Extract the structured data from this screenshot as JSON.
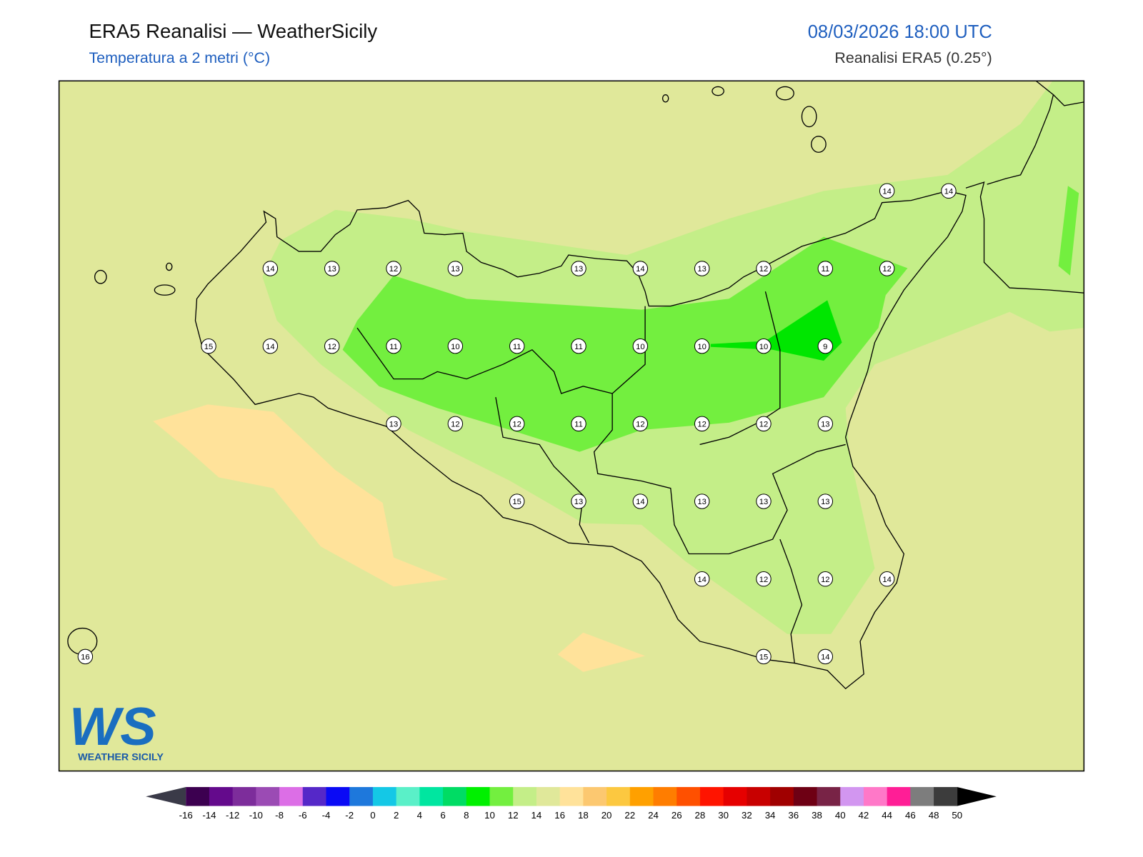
{
  "header": {
    "title": "ERA5 Reanalisi — WeatherSicily",
    "subtitle": "Temperatura a 2 metri (°C)",
    "datetime": "08/03/2026 18:00 UTC",
    "source": "Reanalisi ERA5 (0.25°)"
  },
  "stations": {
    "rows": [
      [
        null,
        null,
        null,
        null,
        null,
        null,
        null,
        null,
        null,
        null,
        null,
        null,
        null,
        14,
        14
      ],
      [
        null,
        null,
        null,
        14,
        13,
        12,
        13,
        null,
        13,
        14,
        13,
        12,
        11,
        12,
        null
      ],
      [
        null,
        null,
        15,
        14,
        12,
        11,
        10,
        11,
        11,
        10,
        10,
        10,
        9,
        null,
        null
      ],
      [
        null,
        null,
        null,
        null,
        null,
        13,
        12,
        12,
        11,
        12,
        12,
        12,
        13,
        null,
        null
      ],
      [
        null,
        null,
        null,
        null,
        null,
        null,
        null,
        15,
        13,
        14,
        13,
        13,
        13,
        null,
        null
      ],
      [
        null,
        null,
        null,
        null,
        null,
        null,
        null,
        null,
        null,
        null,
        14,
        12,
        12,
        14,
        null
      ],
      [
        16,
        null,
        null,
        null,
        null,
        null,
        null,
        null,
        null,
        null,
        null,
        15,
        14,
        null,
        null
      ]
    ]
  },
  "colorbar": {
    "ticks": [
      -16,
      -14,
      -12,
      -10,
      -8,
      -6,
      -4,
      -2,
      0,
      2,
      4,
      6,
      8,
      10,
      12,
      14,
      16,
      18,
      20,
      22,
      24,
      26,
      28,
      30,
      32,
      34,
      36,
      38,
      40,
      42,
      44,
      46,
      48,
      50
    ],
    "colors": [
      "#3c0050",
      "#640a8c",
      "#7d2d9b",
      "#9b4bb4",
      "#dc6ee6",
      "#5528c8",
      "#0a0af5",
      "#1e78dc",
      "#14c8e6",
      "#5af0c8",
      "#00e6a0",
      "#00dc64",
      "#00f000",
      "#73ef3f",
      "#c4ee88",
      "#e0e89a",
      "#ffe29a",
      "#fcc870",
      "#fcc840",
      "#ffa000",
      "#ff7d00",
      "#ff5000",
      "#ff1400",
      "#e60000",
      "#c80000",
      "#a00000",
      "#6e0014",
      "#782346",
      "#d296f0",
      "#ff78c8",
      "#ff1e96",
      "#7d7d7d",
      "#3c3c3c"
    ],
    "under_color": "#3a3a48",
    "over_color": "#000000"
  },
  "logo": {
    "mark": "WS",
    "name": "WEATHER SICILY"
  }
}
